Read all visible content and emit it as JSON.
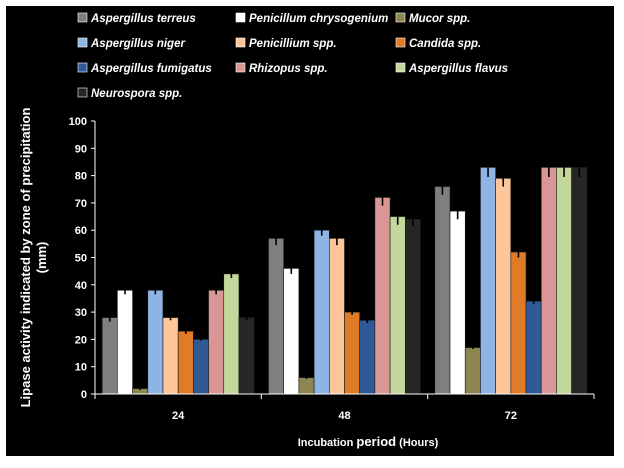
{
  "chart_data": {
    "type": "bar",
    "title": "",
    "xlabel_parts": [
      "Incubation ",
      "period",
      " (Hours)"
    ],
    "ylabel_lines": [
      "Lipase activity indicated by zone of precipitation",
      "(mm)"
    ],
    "ylim": [
      0,
      100
    ],
    "yticks": [
      "0",
      "10",
      "20",
      "30",
      "40",
      "50",
      "60",
      "70",
      "80",
      "90",
      "100"
    ],
    "categories": [
      "24",
      "48",
      "72"
    ],
    "legend_placement": "top",
    "grid": false,
    "series": [
      {
        "name": "Aspergillus terreus",
        "color": "#7f7f7f",
        "values": [
          28,
          57,
          76
        ],
        "errors": [
          1.5,
          2.5,
          3
        ]
      },
      {
        "name": "Penicillum chrysogenium",
        "color": "#ffffff",
        "values": [
          38,
          46,
          67
        ],
        "errors": [
          1.5,
          2,
          3
        ]
      },
      {
        "name": "Mucor spp.",
        "color": "#8e8651",
        "values": [
          2,
          6,
          17
        ],
        "errors": [
          0.5,
          0.5,
          0.5
        ]
      },
      {
        "name": "Aspergillus niger",
        "color": "#8db4e2",
        "values": [
          38,
          60,
          83
        ],
        "errors": [
          1.5,
          2,
          3.5
        ]
      },
      {
        "name": "Penicillium spp.",
        "color": "#fcc69a",
        "values": [
          28,
          57,
          79
        ],
        "errors": [
          1,
          2.5,
          3
        ]
      },
      {
        "name": "Candida spp.",
        "color": "#e07b27",
        "values": [
          23,
          30,
          52
        ],
        "errors": [
          1,
          1,
          2
        ]
      },
      {
        "name": "Aspergillus fumigatus",
        "color": "#2f5a95",
        "values": [
          20,
          27,
          34
        ],
        "errors": [
          0.5,
          1,
          1
        ]
      },
      {
        "name": "Rhizopus spp.",
        "color": "#d99695",
        "values": [
          38,
          72,
          83
        ],
        "errors": [
          1.5,
          3,
          3.5
        ]
      },
      {
        "name": "Aspergillus flavus",
        "color": "#c3d69b",
        "values": [
          44,
          65,
          83
        ],
        "errors": [
          1.5,
          3,
          3.5
        ]
      },
      {
        "name": "Neurospora spp.",
        "color": "#262626",
        "values": [
          28,
          64,
          83
        ],
        "errors": [
          1,
          2.5,
          3.5
        ]
      }
    ]
  }
}
